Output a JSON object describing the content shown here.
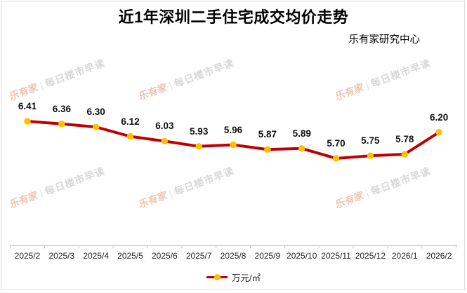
{
  "title": "近1年深圳二手住宅成交均价走势",
  "source": "乐有家研究中心",
  "watermark": {
    "brand": "乐有家",
    "divider": "|",
    "text": "每日楼市早读"
  },
  "legend": {
    "label": "万元/㎡"
  },
  "colors": {
    "line": "#C00000",
    "marker": "#FFC000",
    "axis": "#c6c6c6",
    "label": "#111111",
    "watermark_gray": "#d8d8d8",
    "watermark_brand": "#eec4b2"
  },
  "chart_data": {
    "type": "line",
    "title": "近1年深圳二手住宅成交均价走势",
    "categories": [
      "2025/2",
      "2025/3",
      "2025/4",
      "2025/5",
      "2025/6",
      "2025/7",
      "2025/8",
      "2025/9",
      "2025/10",
      "2025/11",
      "2025/12",
      "2026/1",
      "2026/2"
    ],
    "values": [
      6.41,
      6.36,
      6.3,
      6.12,
      6.03,
      5.93,
      5.96,
      5.87,
      5.89,
      5.7,
      5.75,
      5.78,
      6.2
    ],
    "series_name": "万元/㎡",
    "xlabel": "",
    "ylabel": "万元/㎡",
    "ylim": [
      5.4,
      6.65
    ],
    "grid": false,
    "y_axis_visible": false,
    "data_labels": true,
    "legend_position": "bottom",
    "annotations": [
      "乐有家研究中心"
    ]
  }
}
